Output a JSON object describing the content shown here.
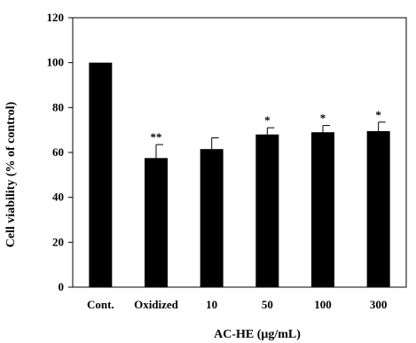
{
  "chart_data": {
    "type": "bar",
    "title": "",
    "xlabel": "AC-HE (μg/mL)",
    "ylabel": "Cell viability (% of control)",
    "ylim": [
      0,
      120
    ],
    "yticks": [
      "0",
      "20",
      "40",
      "60",
      "80",
      "100",
      "120"
    ],
    "categories": [
      "Cont.",
      "Oxidized",
      "10",
      "50",
      "100",
      "300"
    ],
    "values": [
      100,
      57.5,
      61.5,
      68,
      69,
      69.5
    ],
    "errors": [
      0,
      6,
      5,
      3,
      3,
      4
    ],
    "significance": [
      "",
      "**",
      "",
      "*",
      "*",
      "*"
    ],
    "bar_color": "#000000",
    "grid": false,
    "legend": "none"
  }
}
